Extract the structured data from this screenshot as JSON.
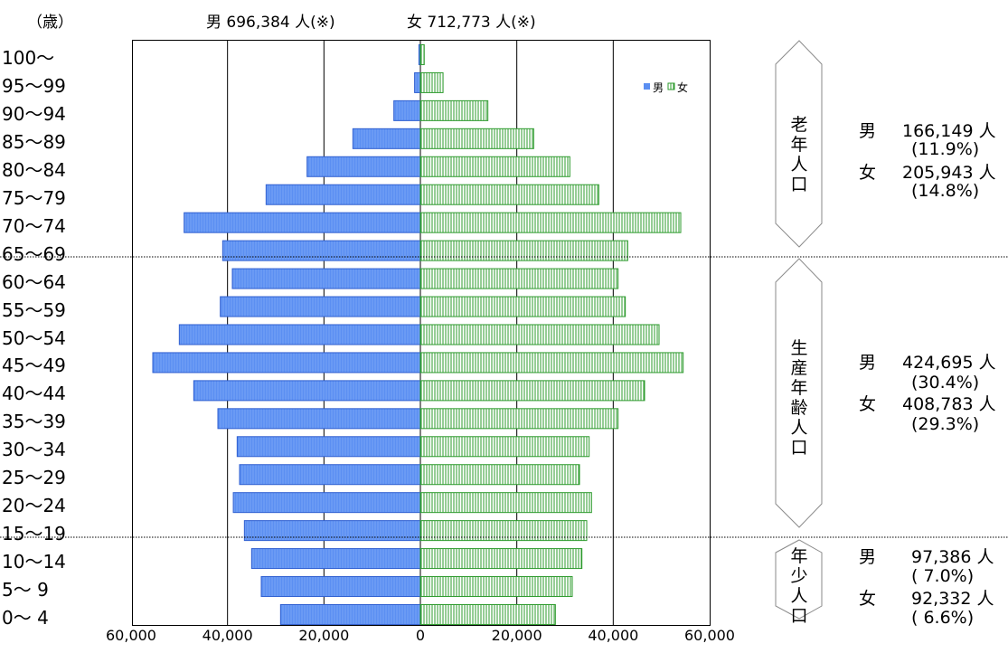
{
  "chart_data": {
    "type": "bar",
    "unit_label": "（歳）",
    "male_total": "男 696,384 人(※)",
    "female_total": "女 712,773 人(※)",
    "categories": [
      "100～",
      "95～99",
      "90～94",
      "85～89",
      "80～84",
      "75～79",
      "70～74",
      "65～69",
      "60～64",
      "55～59",
      "50～54",
      "45～49",
      "40～44",
      "35～39",
      "30～34",
      "25～29",
      "20～24",
      "15～19",
      "10～14",
      "5～ 9",
      "0～ 4"
    ],
    "series": [
      {
        "name": "男",
        "values": [
          300,
          1200,
          5500,
          14000,
          23500,
          32000,
          49000,
          41000,
          39000,
          41500,
          50000,
          55500,
          47000,
          42000,
          38000,
          37500,
          38800,
          36500,
          35000,
          33000,
          29000
        ]
      },
      {
        "name": "女",
        "values": [
          800,
          4700,
          14000,
          23500,
          31000,
          37000,
          54000,
          43000,
          41000,
          42500,
          49500,
          54500,
          46500,
          41000,
          35000,
          33000,
          35500,
          34500,
          33500,
          31500,
          28000
        ]
      }
    ],
    "x_ticks": [
      "60,000",
      "40,000",
      "20,000",
      "0",
      "20,000",
      "40,000",
      "60,000"
    ],
    "xlim": [
      -60000,
      60000
    ],
    "legend_position": "top-right",
    "colors": {
      "male": "#5b8ff2",
      "male_stroke": "#2f5fd0",
      "female": "#2e9b2e",
      "female_fill": "#ffffff"
    },
    "groups": [
      {
        "title": "老年人口",
        "male": "166,149 人",
        "male_pct": "(11.9%)",
        "female": "205,943 人",
        "female_pct": "(14.8%)"
      },
      {
        "title": "生産年齢人口",
        "male": "424,695 人",
        "male_pct": "(30.4%)",
        "female": "408,783 人",
        "female_pct": "(29.3%)"
      },
      {
        "title": "年少人口",
        "male": "97,386 人",
        "male_pct": "( 7.0%)",
        "female": "92,332 人",
        "female_pct": "( 6.6%)"
      }
    ],
    "male_mark": "男",
    "female_mark": "女"
  }
}
